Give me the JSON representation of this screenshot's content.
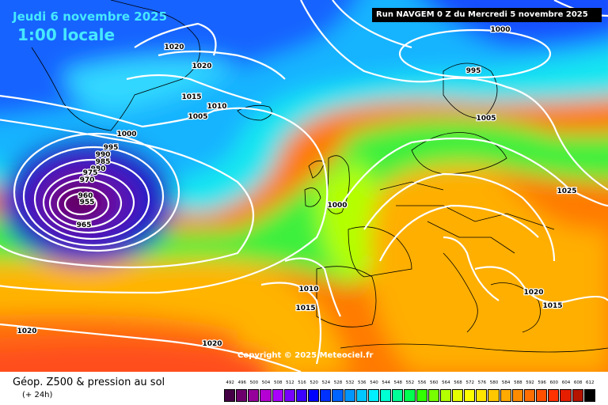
{
  "header": {
    "date": "Jeudi 6 novembre 2025",
    "time": "1:00 locale",
    "run": "Run NAVGEM 0 Z du Mercredi 5 novembre 2025"
  },
  "copyright": "Copyright © 2025 Meteociel.fr",
  "footer": {
    "title": "Géop. Z500 & pression au sol",
    "subtitle": "(+ 24h)"
  },
  "isobar_labels": [
    "1020",
    "1020",
    "1015",
    "1010",
    "1005",
    "1000",
    "995",
    "990",
    "985",
    "980",
    "975",
    "970",
    "960",
    "955",
    "965",
    "1000",
    "1010",
    "1015",
    "1020",
    "1020",
    "1000",
    "995",
    "1005",
    "1025",
    "1020",
    "1015"
  ],
  "legend": {
    "labels": [
      "492",
      "496",
      "500",
      "504",
      "508",
      "512",
      "516",
      "520",
      "524",
      "528",
      "532",
      "536",
      "540",
      "544",
      "548",
      "552",
      "556",
      "560",
      "564",
      "568",
      "572",
      "576",
      "580",
      "584",
      "588",
      "592",
      "596",
      "600",
      "604",
      "608",
      "612"
    ],
    "colors": [
      "#460046",
      "#6e006e",
      "#96009b",
      "#b400d2",
      "#aa00ff",
      "#7800ff",
      "#3c00ff",
      "#0000ff",
      "#0032ff",
      "#0064ff",
      "#0096ff",
      "#00c8ff",
      "#00f0ff",
      "#00ffd2",
      "#00ff96",
      "#00ff50",
      "#32ff00",
      "#78ff00",
      "#b4ff00",
      "#e6ff00",
      "#ffff00",
      "#ffe600",
      "#ffc800",
      "#ffaa00",
      "#ff8c00",
      "#ff6e00",
      "#ff5000",
      "#ff3200",
      "#e61e00",
      "#b41400",
      "#000000"
    ]
  }
}
